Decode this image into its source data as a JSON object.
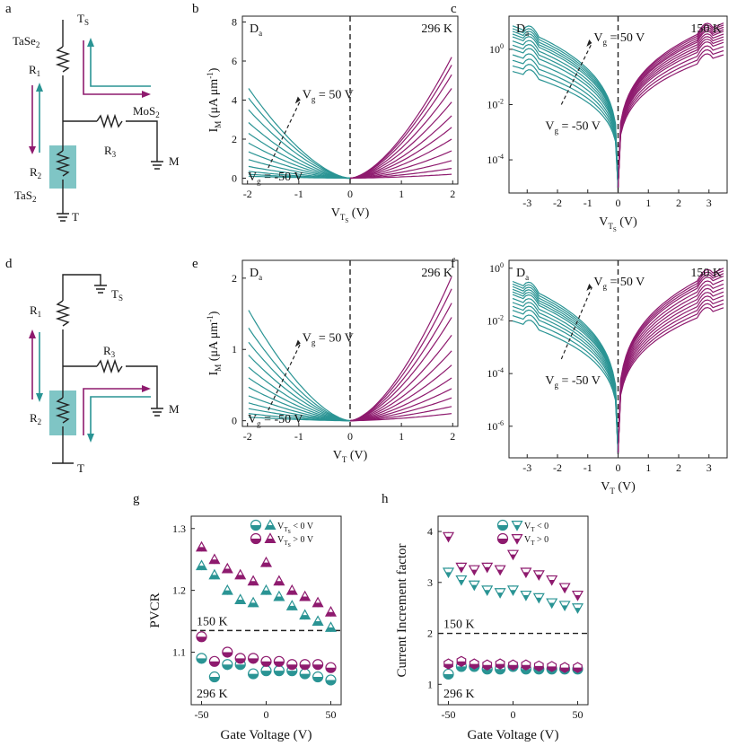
{
  "colors": {
    "teal": "#2a9494",
    "purple": "#8e1a6e",
    "shade": "#7fc5c5",
    "ink": "#222222"
  },
  "panel_labels": {
    "a": "a",
    "b": "b",
    "c": "c",
    "d": "d",
    "e": "e",
    "f": "f",
    "g": "g",
    "h": "h"
  },
  "circuits": {
    "a": {
      "ts": "T",
      "ts_sub": "S",
      "tase2": "TaSe",
      "tase2_sub": "2",
      "r1": "R",
      "r1_sub": "1",
      "r2": "R",
      "r2_sub": "2",
      "r3": "R",
      "r3_sub": "3",
      "mos2": "MoS",
      "mos2_sub": "2",
      "tas2": "TaS",
      "tas2_sub": "2",
      "m": "M",
      "t": "T"
    },
    "d": {
      "ts": "T",
      "ts_sub": "S",
      "r1": "R",
      "r1_sub": "1",
      "r2": "R",
      "r2_sub": "2",
      "r3": "R",
      "r3_sub": "3",
      "m": "M",
      "t": "T"
    }
  },
  "chart_data": [
    {
      "id": "b",
      "type": "line",
      "title_left": "D",
      "title_left_sub": "a",
      "temp": "296 K",
      "xlim": [
        -2.1,
        2.1
      ],
      "ylim": [
        -0.3,
        8.3
      ],
      "xticks": [
        "-2",
        "-1",
        "0",
        "1",
        "2"
      ],
      "yticks": [
        "0",
        "2",
        "4",
        "6",
        "8"
      ],
      "ylabel": "I",
      "ylabel_sub": "M",
      "ylabel_rest": " (μA μm",
      "ylabel_sup": "-1",
      "ylabel_close": ")",
      "xlabel": "V",
      "xlabel_sub": "T",
      "xlabel_subsub": "S",
      "xlabel_rest": " (V)",
      "arrow_top": "V",
      "arrow_top_sub": "g",
      "arrow_top_val": " = 50 V",
      "arrow_bottom": "V",
      "arrow_bottom_sub": "g",
      "arrow_bottom_val": " = -50 V",
      "neg_end": [
        0.1,
        0.2,
        0.35,
        0.6,
        0.95,
        1.35,
        1.8,
        2.3,
        2.85,
        3.5,
        4.1,
        4.6
      ],
      "pos_end": [
        0.2,
        0.5,
        0.9,
        1.4,
        2.0,
        2.6,
        3.2,
        3.9,
        4.6,
        5.3,
        5.8,
        6.2
      ],
      "series_count": 12
    },
    {
      "id": "c",
      "type": "line",
      "title_left": "D",
      "title_left_sub": "a",
      "temp": "150 K",
      "xlim": [
        -3.6,
        3.6
      ],
      "ylim_log10": [
        -5.2,
        1.2
      ],
      "xticks": [
        "-3",
        "-2",
        "-1",
        "0",
        "1",
        "2",
        "3"
      ],
      "yticks": [
        "10-4",
        "10-2",
        "100"
      ],
      "ylabel": "",
      "xlabel": "V",
      "xlabel_sub": "T",
      "xlabel_subsub": "S",
      "xlabel_rest": " (V)",
      "arrow_top": "V",
      "arrow_top_sub": "g",
      "arrow_top_val": " = 50 V",
      "arrow_bottom": "V",
      "arrow_bottom_sub": "g",
      "arrow_bottom_val": " = -50 V",
      "neg_end_log": [
        -0.8,
        -0.6,
        -0.4,
        -0.2,
        0.0,
        0.15,
        0.3,
        0.45,
        0.55,
        0.65,
        0.75,
        0.85
      ],
      "pos_end_log": [
        -0.2,
        -0.05,
        0.1,
        0.25,
        0.35,
        0.45,
        0.55,
        0.65,
        0.72,
        0.8,
        0.88,
        0.95
      ],
      "series_count": 12
    },
    {
      "id": "e",
      "type": "line",
      "title_left": "D",
      "title_left_sub": "a",
      "temp": "296 K",
      "xlim": [
        -2.1,
        2.1
      ],
      "ylim": [
        -0.08,
        2.25
      ],
      "xticks": [
        "-2",
        "-1",
        "0",
        "1",
        "2"
      ],
      "yticks": [
        "0",
        "1",
        "2"
      ],
      "ylabel": "I",
      "ylabel_sub": "M",
      "ylabel_rest": " (μA μm",
      "ylabel_sup": "-1",
      "ylabel_close": ")",
      "xlabel": "V",
      "xlabel_sub": "T",
      "xlabel_subsub": "",
      "xlabel_rest": " (V)",
      "arrow_top": "V",
      "arrow_top_sub": "g",
      "arrow_top_val": " = 50 V",
      "arrow_bottom": "V",
      "arrow_bottom_sub": "g",
      "arrow_bottom_val": " = -50 V",
      "neg_end": [
        0.05,
        0.1,
        0.17,
        0.25,
        0.35,
        0.47,
        0.6,
        0.75,
        0.92,
        1.1,
        1.3,
        1.55
      ],
      "pos_end": [
        0.1,
        0.2,
        0.32,
        0.45,
        0.6,
        0.78,
        0.98,
        1.2,
        1.45,
        1.65,
        1.85,
        2.02
      ],
      "series_count": 12
    },
    {
      "id": "f",
      "type": "line",
      "title_left": "D",
      "title_left_sub": "a",
      "temp": "150 K",
      "xlim": [
        -3.6,
        3.6
      ],
      "ylim_log10": [
        -7.2,
        0.3
      ],
      "xticks": [
        "-3",
        "-2",
        "-1",
        "0",
        "1",
        "2",
        "3"
      ],
      "yticks": [
        "10-6",
        "10-4",
        "10-2",
        "100"
      ],
      "ylabel": "",
      "xlabel": "V",
      "xlabel_sub": "T",
      "xlabel_subsub": "",
      "xlabel_rest": " (V)",
      "arrow_top": "V",
      "arrow_top_sub": "g",
      "arrow_top_val": " = 50 V",
      "arrow_bottom": "V",
      "arrow_bottom_sub": "g",
      "arrow_bottom_val": " = -50 V",
      "neg_end_log": [
        -2.0,
        -1.8,
        -1.6,
        -1.45,
        -1.3,
        -1.15,
        -1.0,
        -0.9,
        -0.8,
        -0.7,
        -0.6,
        -0.5
      ],
      "pos_end_log": [
        -1.5,
        -1.35,
        -1.2,
        -1.05,
        -0.9,
        -0.75,
        -0.6,
        -0.45,
        -0.3,
        -0.2,
        -0.1,
        0.0
      ],
      "series_count": 12
    },
    {
      "id": "g",
      "type": "scatter",
      "xlim": [
        -58,
        58
      ],
      "ylim": [
        1.015,
        1.32
      ],
      "xticks": [
        "-50",
        "0",
        "50"
      ],
      "yticks": [
        "1.1",
        "1.2",
        "1.3"
      ],
      "ylabel": "PVCR",
      "xlabel": "Gate Voltage (V)",
      "threshold": 1.135,
      "upper_label": "150 K",
      "lower_label": "296 K",
      "legend": [
        {
          "text": "V",
          "sub": "T",
          "subsub": "S",
          "rest": " < 0 V",
          "color": "teal"
        },
        {
          "text": "V",
          "sub": "T",
          "subsub": "S",
          "rest": " > 0 V",
          "color": "purple"
        }
      ],
      "x": [
        -50,
        -40,
        -30,
        -20,
        -10,
        0,
        10,
        20,
        30,
        40,
        50
      ],
      "series": [
        {
          "name": "150K teal",
          "marker": "triangle-up",
          "color": "teal",
          "values": [
            1.24,
            1.225,
            1.2,
            1.185,
            1.18,
            1.2,
            1.19,
            1.175,
            1.16,
            1.15,
            1.14
          ]
        },
        {
          "name": "150K purple",
          "marker": "triangle-up",
          "color": "purple",
          "values": [
            1.27,
            1.25,
            1.235,
            1.225,
            1.215,
            1.245,
            1.215,
            1.2,
            1.19,
            1.18,
            1.165
          ]
        },
        {
          "name": "296K teal",
          "marker": "circle-half",
          "color": "teal",
          "values": [
            1.09,
            1.06,
            1.08,
            1.08,
            1.065,
            1.07,
            1.07,
            1.07,
            1.065,
            1.06,
            1.055
          ]
        },
        {
          "name": "296K purple",
          "marker": "circle-half",
          "color": "purple",
          "values": [
            1.125,
            1.085,
            1.1,
            1.09,
            1.09,
            1.085,
            1.085,
            1.08,
            1.08,
            1.08,
            1.075
          ]
        }
      ]
    },
    {
      "id": "h",
      "type": "scatter",
      "xlim": [
        -58,
        58
      ],
      "ylim": [
        0.6,
        4.3
      ],
      "xticks": [
        "-50",
        "0",
        "50"
      ],
      "yticks": [
        "1",
        "2",
        "3",
        "4"
      ],
      "ylabel": "Current Increment factor",
      "xlabel": "Gate Voltage (V)",
      "threshold": 2.0,
      "upper_label": "150 K",
      "lower_label": "296 K",
      "legend": [
        {
          "text": "V",
          "sub": "T",
          "subsub": "",
          "rest": " < 0",
          "color": "teal"
        },
        {
          "text": "V",
          "sub": "T",
          "subsub": "",
          "rest": " > 0",
          "color": "purple"
        }
      ],
      "x": [
        -50,
        -40,
        -30,
        -20,
        -10,
        0,
        10,
        20,
        30,
        40,
        50
      ],
      "series": [
        {
          "name": "150K teal",
          "marker": "triangle-down",
          "color": "teal",
          "values": [
            3.2,
            3.05,
            2.95,
            2.85,
            2.8,
            2.85,
            2.75,
            2.7,
            2.6,
            2.55,
            2.5
          ]
        },
        {
          "name": "150K purple",
          "marker": "triangle-down",
          "color": "purple",
          "values": [
            3.9,
            3.3,
            3.25,
            3.3,
            3.25,
            3.55,
            3.2,
            3.15,
            3.05,
            2.9,
            2.75
          ]
        },
        {
          "name": "296K teal",
          "marker": "circle-half",
          "color": "teal",
          "values": [
            1.2,
            1.35,
            1.35,
            1.3,
            1.3,
            1.35,
            1.3,
            1.3,
            1.3,
            1.3,
            1.3
          ]
        },
        {
          "name": "296K purple",
          "marker": "hexagon",
          "color": "purple",
          "values": [
            1.4,
            1.45,
            1.4,
            1.38,
            1.4,
            1.38,
            1.38,
            1.36,
            1.35,
            1.33,
            1.33
          ]
        }
      ]
    }
  ]
}
